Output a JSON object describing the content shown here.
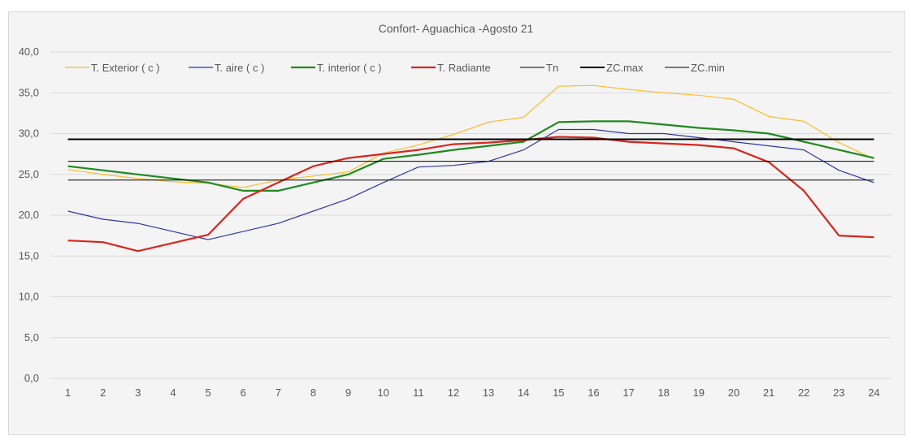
{
  "chart_data": {
    "type": "line",
    "title": "Confort- Aguachica -Agosto 21",
    "xlabel": "",
    "ylabel": "",
    "x": [
      1,
      2,
      3,
      4,
      5,
      6,
      7,
      8,
      9,
      10,
      11,
      12,
      13,
      14,
      15,
      16,
      17,
      18,
      19,
      20,
      21,
      22,
      23,
      24
    ],
    "x_tick_labels": [
      "1",
      "2",
      "3",
      "4",
      "5",
      "6",
      "7",
      "8",
      "9",
      "10",
      "11",
      "12",
      "13",
      "14",
      "15",
      "16",
      "17",
      "18",
      "19",
      "20",
      "21",
      "22",
      "23",
      "24"
    ],
    "ylim": [
      0,
      40
    ],
    "y_ticks": [
      0,
      5,
      10,
      15,
      20,
      25,
      30,
      35,
      40
    ],
    "y_tick_labels": [
      "0,0",
      "5,0",
      "10,0",
      "15,0",
      "20,0",
      "25,0",
      "30,0",
      "35,0",
      "40,0"
    ],
    "grid": "horizontal",
    "legend_position": "top",
    "series": [
      {
        "name": "T. Exterior ( c )",
        "color": "#fbbc2c",
        "width": 1.2,
        "values": [
          25.6,
          25.0,
          24.5,
          24.1,
          23.9,
          23.4,
          24.3,
          24.8,
          25.3,
          27.6,
          28.6,
          29.9,
          31.4,
          32.0,
          35.8,
          35.9,
          35.4,
          35.0,
          34.7,
          34.2,
          32.1,
          31.5,
          28.9,
          26.9
        ]
      },
      {
        "name": "T. aire ( c )",
        "color": "#2e36a4",
        "width": 1.2,
        "values": [
          20.5,
          19.5,
          19.0,
          18.0,
          17.0,
          18.0,
          19.0,
          20.5,
          22.0,
          24.0,
          25.9,
          26.1,
          26.6,
          28.0,
          30.5,
          30.5,
          30.0,
          30.0,
          29.5,
          29.0,
          28.5,
          28.0,
          25.5,
          24.0
        ]
      },
      {
        "name": "T. interior ( c )",
        "color": "#1f8a1f",
        "width": 2.2,
        "values": [
          26.0,
          25.5,
          25.0,
          24.5,
          24.0,
          23.0,
          23.0,
          24.0,
          25.0,
          26.9,
          27.4,
          28.0,
          28.5,
          29.0,
          31.4,
          31.5,
          31.5,
          31.1,
          30.7,
          30.4,
          30.0,
          29.0,
          28.0,
          27.0
        ]
      },
      {
        "name": "T. Radiante",
        "color": "#d7261e",
        "width": 2.2,
        "values": [
          16.9,
          16.7,
          15.6,
          16.6,
          17.6,
          22.0,
          24.0,
          26.0,
          27.0,
          27.5,
          28.0,
          28.7,
          28.9,
          29.2,
          29.6,
          29.5,
          29.0,
          28.8,
          28.6,
          28.2,
          26.5,
          23.0,
          17.5,
          17.3
        ]
      },
      {
        "name": "Tn",
        "color": "#000000",
        "width": 1.0,
        "constant": 26.6
      },
      {
        "name": "ZC.max",
        "color": "#000000",
        "width": 2.0,
        "constant": 29.3
      },
      {
        "name": "ZC.min",
        "color": "#000000",
        "width": 1.0,
        "constant": 24.3
      }
    ]
  }
}
